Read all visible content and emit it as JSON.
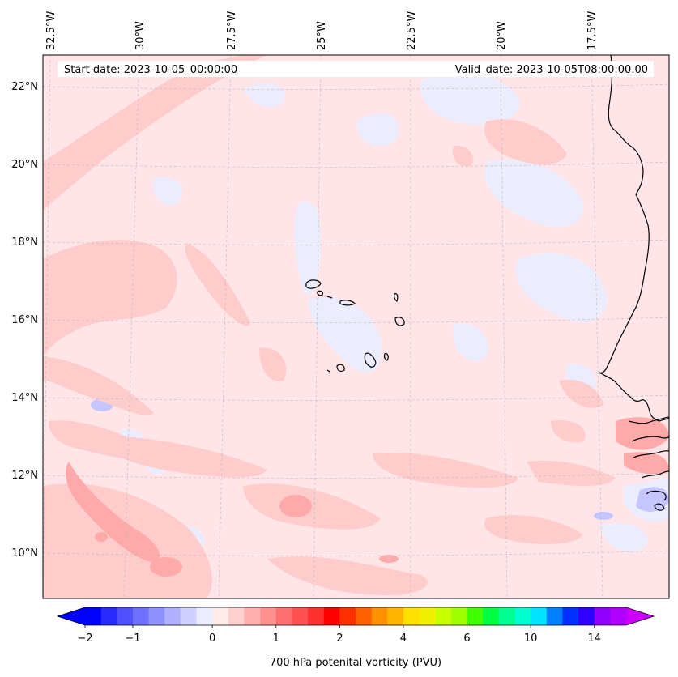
{
  "map": {
    "start_date_text": "Start date: 2023-10-05_00:00:00",
    "valid_date_text": "Valid_date: 2023-10-05T08:00:00.00",
    "lon_labels": [
      "32.5°W",
      "30°W",
      "27.5°W",
      "25°W",
      "22.5°W",
      "20°W",
      "17.5°W"
    ],
    "lat_labels": [
      "22°N",
      "20°N",
      "18°N",
      "16°N",
      "14°N",
      "12°N",
      "10°N"
    ],
    "colors": {
      "background_field": "#ffe5e7",
      "light_blue": "#ececff",
      "light_red": "#ffcccc",
      "mid_red": "#ffaaaa",
      "mid_blue": "#c5c5ff",
      "coast": "#000000",
      "grid": "#b8b8b8"
    }
  },
  "colorbar": {
    "label": "700 hPa potenital vorticity (PVU)",
    "tick_labels": [
      "−2",
      "−1",
      "0",
      "1",
      "2",
      "4",
      "6",
      "10",
      "14"
    ],
    "min_color": "#0000ff",
    "max_color": "#cc00ff",
    "colors": [
      "#0000ff",
      "#2a2aff",
      "#5050ff",
      "#7070ff",
      "#9090ff",
      "#b0b0ff",
      "#d0d0ff",
      "#ececff",
      "#ffeaea",
      "#ffd0d0",
      "#ffb0b0",
      "#ff9090",
      "#ff7070",
      "#ff5050",
      "#ff3030",
      "#ff0000",
      "#ff3000",
      "#ff6000",
      "#ff9000",
      "#ffb400",
      "#ffe000",
      "#f0f000",
      "#c8ff00",
      "#a0ff00",
      "#40ff00",
      "#00ff40",
      "#00ff90",
      "#00ffd0",
      "#00e0ff",
      "#0080ff",
      "#0030ff",
      "#3000ff",
      "#9000ff",
      "#b000ff"
    ]
  }
}
